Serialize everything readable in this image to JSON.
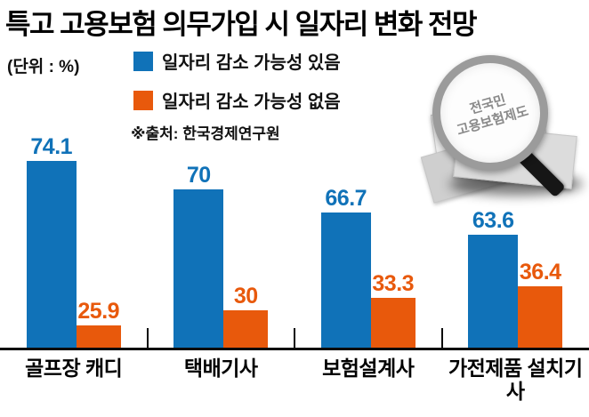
{
  "title": "특고 고용보험 의무가입 시 일자리 변화 전망",
  "unit_label": "(단위 : %)",
  "legend": {
    "items": [
      {
        "label": "일자리 감소 가능성 있음",
        "color": "#1072b8"
      },
      {
        "label": "일자리 감소 가능성 없음",
        "color": "#e8590c"
      }
    ]
  },
  "source": "※출처: 한국경제연구원",
  "stamp": {
    "line1": "전국민",
    "line2": "고용보험제도"
  },
  "chart_data": {
    "type": "bar",
    "title": "특고 고용보험 의무가입 시 일자리 변화 전망",
    "unit": "%",
    "categories": [
      "골프장 캐디",
      "택배기사",
      "보험설계사",
      "가전제품 설치기사"
    ],
    "series": [
      {
        "name": "일자리 감소 가능성 있음",
        "color": "#1072b8",
        "values": [
          74.1,
          70,
          66.7,
          63.6
        ]
      },
      {
        "name": "일자리 감소 가능성 없음",
        "color": "#e8590c",
        "values": [
          25.9,
          30,
          33.3,
          36.4
        ]
      }
    ],
    "ylim": [
      0,
      100
    ],
    "grid": false,
    "legend_position": "top-left",
    "value_labels": true
  }
}
